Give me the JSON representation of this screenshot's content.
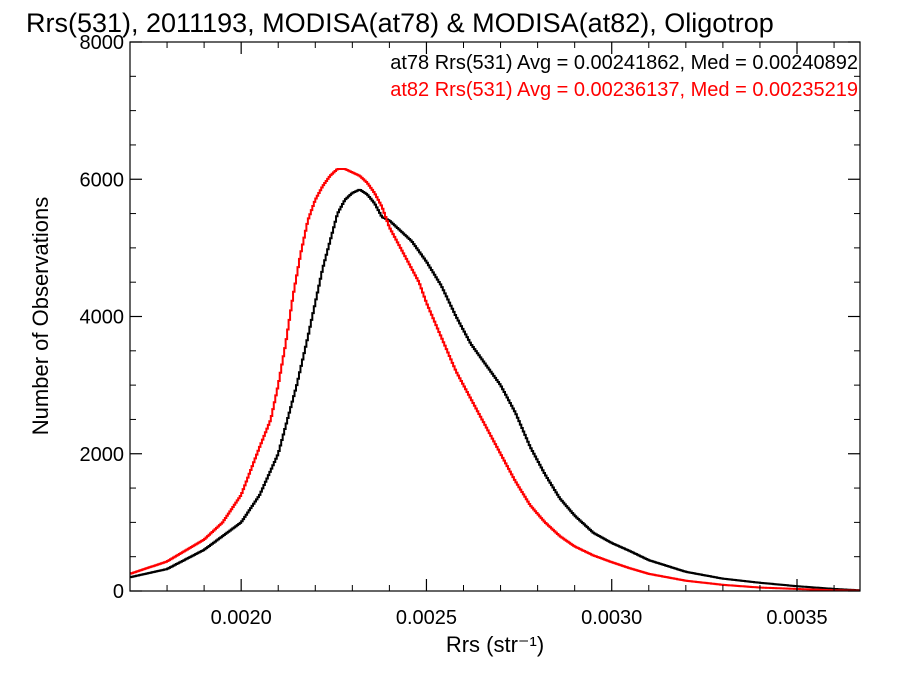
{
  "chart_data": {
    "type": "line",
    "title": "Rrs(531), 2011193, MODISA(at78) & MODISA(at82), Oligotrop",
    "xlabel": "Rrs (str⁻¹)",
    "ylabel": "Number of Observations",
    "xlim": [
      0.0017,
      0.00367
    ],
    "ylim": [
      0,
      8000
    ],
    "x_ticks": [
      "0.0020",
      "0.0025",
      "0.0030",
      "0.0035"
    ],
    "x_tick_values": [
      0.002,
      0.0025,
      0.003,
      0.0035
    ],
    "y_ticks": [
      "0",
      "2000",
      "4000",
      "6000",
      "8000"
    ],
    "y_tick_values": [
      0,
      2000,
      4000,
      6000,
      8000
    ],
    "grid": false,
    "legend_position": "top-right",
    "series": [
      {
        "name": "at78",
        "label": "at78 Rrs(531) Avg = 0.00241862, Med = 0.00240892",
        "color": "#000000",
        "x": [
          0.0017,
          0.0018,
          0.0019,
          0.00195,
          0.002,
          0.00205,
          0.0021,
          0.00215,
          0.00218,
          0.0022,
          0.00222,
          0.00224,
          0.00226,
          0.00228,
          0.0023,
          0.00232,
          0.00234,
          0.00236,
          0.00238,
          0.0024,
          0.00242,
          0.00244,
          0.00246,
          0.00248,
          0.0025,
          0.00254,
          0.00258,
          0.00262,
          0.00266,
          0.0027,
          0.00274,
          0.00278,
          0.00282,
          0.00286,
          0.0029,
          0.00295,
          0.003,
          0.00305,
          0.0031,
          0.0032,
          0.0033,
          0.0034,
          0.0035,
          0.0036,
          0.00367
        ],
        "y": [
          200,
          320,
          600,
          800,
          1000,
          1400,
          2000,
          3000,
          3700,
          4200,
          4700,
          5100,
          5500,
          5700,
          5800,
          5850,
          5780,
          5650,
          5450,
          5400,
          5300,
          5200,
          5100,
          4950,
          4800,
          4450,
          4000,
          3600,
          3300,
          3000,
          2600,
          2100,
          1700,
          1350,
          1100,
          850,
          700,
          580,
          450,
          280,
          180,
          120,
          70,
          30,
          10
        ]
      },
      {
        "name": "at82",
        "label": "at82 Rrs(531) Avg = 0.00236137, Med = 0.00235219",
        "color": "#ff0000",
        "x": [
          0.0017,
          0.0018,
          0.0019,
          0.00195,
          0.002,
          0.00205,
          0.00208,
          0.0021,
          0.00212,
          0.00214,
          0.00216,
          0.00218,
          0.0022,
          0.00222,
          0.00224,
          0.00226,
          0.00228,
          0.0023,
          0.00232,
          0.00234,
          0.00236,
          0.00238,
          0.0024,
          0.00242,
          0.00244,
          0.00246,
          0.00248,
          0.0025,
          0.00254,
          0.00258,
          0.00262,
          0.00266,
          0.0027,
          0.00274,
          0.00278,
          0.00282,
          0.00286,
          0.0029,
          0.00295,
          0.003,
          0.00305,
          0.0031,
          0.0032,
          0.0033,
          0.0034,
          0.0035,
          0.0036,
          0.00367
        ],
        "y": [
          250,
          430,
          750,
          1000,
          1400,
          2100,
          2500,
          3000,
          3600,
          4300,
          4900,
          5400,
          5700,
          5900,
          6050,
          6150,
          6150,
          6100,
          6050,
          5950,
          5800,
          5600,
          5300,
          5100,
          4900,
          4700,
          4500,
          4200,
          3700,
          3200,
          2800,
          2400,
          2000,
          1600,
          1250,
          1000,
          800,
          650,
          520,
          420,
          330,
          250,
          150,
          90,
          50,
          30,
          10,
          5
        ]
      }
    ]
  }
}
